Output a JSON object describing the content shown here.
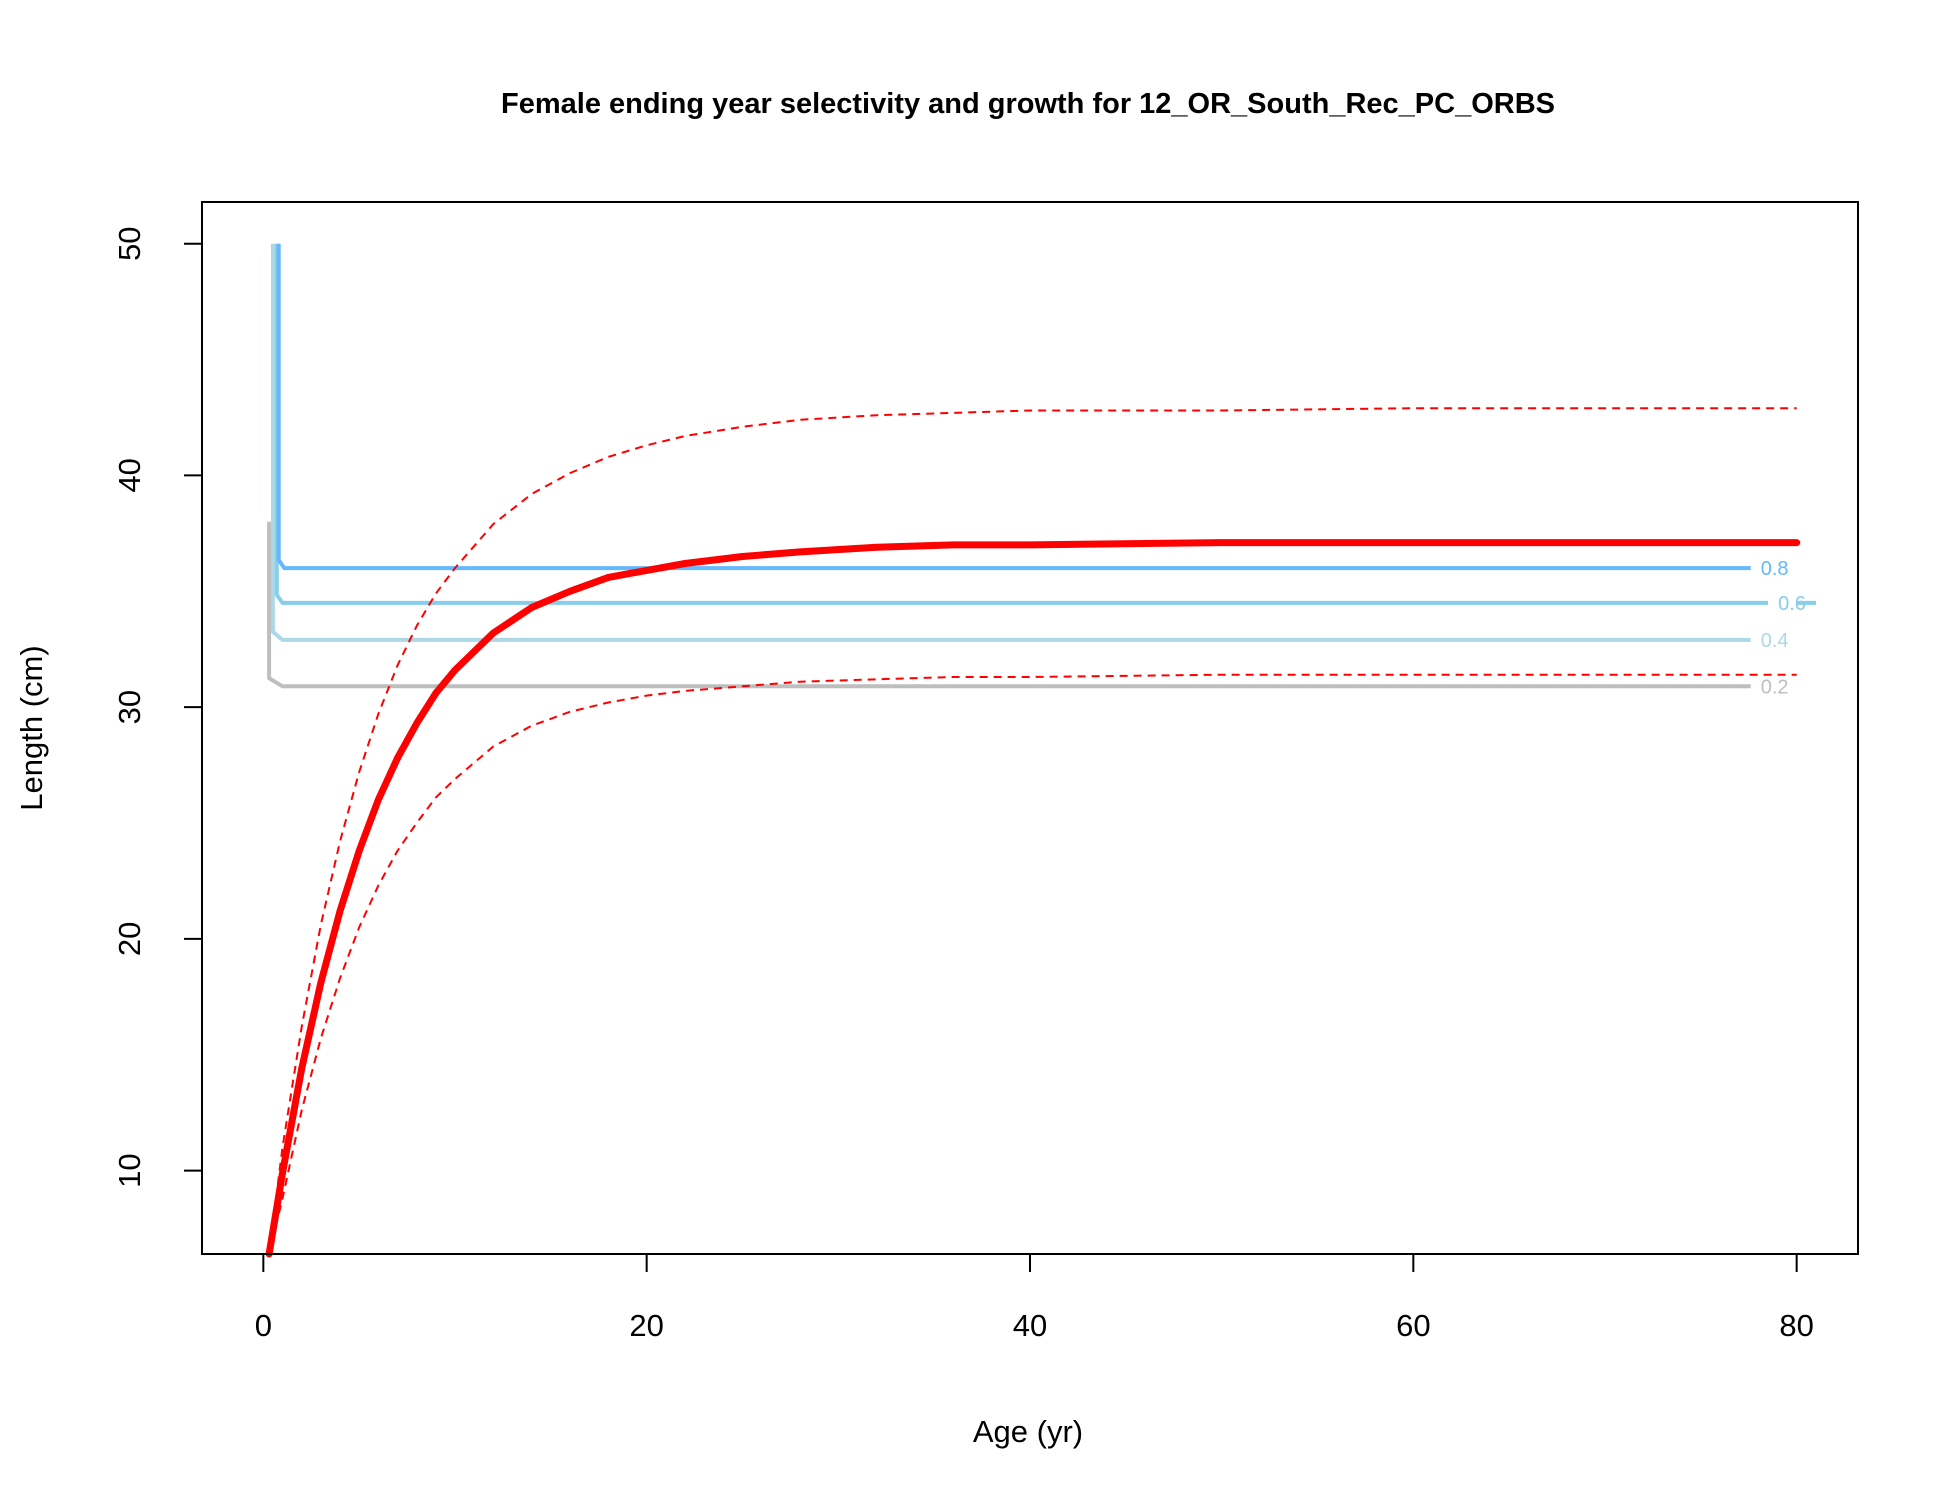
{
  "chart_data": {
    "type": "line",
    "title": "Female ending year selectivity and growth for 12_OR_South_Rec_PC_ORBS",
    "xlabel": "Age (yr)",
    "ylabel": "Length (cm)",
    "xlim": [
      -3.2,
      83.2
    ],
    "ylim": [
      6.4,
      51.8
    ],
    "xticks": [
      0,
      20,
      40,
      60,
      80
    ],
    "yticks": [
      10,
      20,
      30,
      40,
      50
    ],
    "grid": false,
    "growth": {
      "color": "#ff0000",
      "mean": {
        "x": [
          0.3,
          1,
          2,
          3,
          4,
          5,
          6,
          7,
          8,
          9,
          10,
          12,
          14,
          16,
          18,
          20,
          22,
          25,
          28,
          32,
          36,
          40,
          50,
          60,
          70,
          80
        ],
        "y": [
          6.4,
          9.9,
          14.4,
          18.1,
          21.2,
          23.8,
          26.0,
          27.8,
          29.3,
          30.6,
          31.6,
          33.2,
          34.3,
          35.0,
          35.6,
          35.9,
          36.2,
          36.5,
          36.7,
          36.9,
          37.0,
          37.0,
          37.1,
          37.1,
          37.1,
          37.1
        ]
      },
      "upper": {
        "x": [
          0.3,
          1,
          2,
          3,
          4,
          5,
          6,
          7,
          8,
          9,
          10,
          12,
          14,
          16,
          18,
          20,
          22,
          25,
          28,
          32,
          36,
          40,
          50,
          60,
          70,
          80
        ],
        "y": [
          6.4,
          11.0,
          16.2,
          20.6,
          24.2,
          27.2,
          29.7,
          31.8,
          33.5,
          34.9,
          36.0,
          37.9,
          39.2,
          40.1,
          40.8,
          41.3,
          41.7,
          42.1,
          42.4,
          42.6,
          42.7,
          42.8,
          42.8,
          42.9,
          42.9,
          42.9
        ]
      },
      "lower": {
        "x": [
          0.3,
          1,
          2,
          3,
          4,
          5,
          6,
          7,
          8,
          9,
          10,
          12,
          14,
          16,
          18,
          20,
          22,
          25,
          28,
          32,
          36,
          40,
          50,
          60,
          70,
          80
        ],
        "y": [
          6.4,
          8.8,
          12.6,
          15.7,
          18.3,
          20.5,
          22.3,
          23.8,
          25.0,
          26.1,
          26.9,
          28.3,
          29.2,
          29.8,
          30.2,
          30.5,
          30.7,
          30.9,
          31.1,
          31.2,
          31.3,
          31.3,
          31.4,
          31.4,
          31.4,
          31.4
        ]
      }
    },
    "selectivity_contours": [
      {
        "level": "0.2",
        "color": "#bebebe",
        "y_start": 38.0,
        "y_end": 30.9,
        "x_vertical": 0.3,
        "x_bend": 1.0,
        "x_end": 77.6
      },
      {
        "level": "0.4",
        "color": "#add8e6",
        "y_start": 50.0,
        "y_end": 32.9,
        "x_vertical": 0.5,
        "x_bend": 1.0,
        "x_end": 77.6
      },
      {
        "level": "0.6",
        "color": "#87ceeb",
        "y_start": 50.0,
        "y_end": 34.5,
        "x_vertical": 0.7,
        "x_bend": 1.0,
        "x_end": 80.0
      },
      {
        "level": "0.8",
        "color": "#63b8ff",
        "y_start": 50.0,
        "y_end": 36.0,
        "x_vertical": 0.8,
        "x_bend": 1.1,
        "x_end": 77.6
      }
    ]
  }
}
